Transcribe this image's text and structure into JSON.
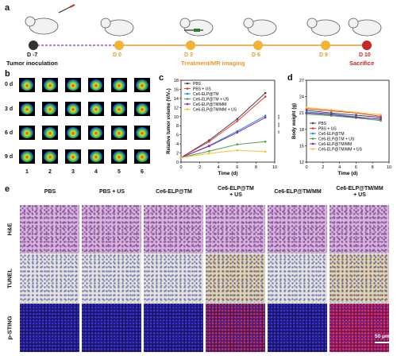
{
  "panels": {
    "a": "a",
    "b": "b",
    "c": "c",
    "d": "d",
    "e": "e"
  },
  "timeline": {
    "days": [
      "D -7",
      "D 0",
      "D 3",
      "D 6",
      "D 9",
      "D 10"
    ],
    "captions": {
      "tumor": "Tumor inoculation",
      "imaging": "Treatment/MR imaging",
      "sacrifice": "Sacrifice"
    },
    "colors": {
      "line": "#e89a2a",
      "dashed": "#7b3fa0",
      "start": "#333333",
      "end": "#c62828"
    }
  },
  "mri": {
    "rows": [
      "0 d",
      "3 d",
      "6 d",
      "9 d"
    ],
    "cols": [
      "1",
      "2",
      "3",
      "4",
      "5",
      "6"
    ]
  },
  "chart_data": [
    {
      "type": "line",
      "panel": "c",
      "xlabel": "Time (d)",
      "ylabel": "Relative tumor volume (V/V₀)",
      "x": [
        0,
        3,
        6,
        9
      ],
      "xticks": [
        "0",
        "2",
        "4",
        "6",
        "8",
        "10"
      ],
      "yticks": [
        "0",
        "2",
        "4",
        "6",
        "8",
        "10",
        "12",
        "14",
        "16",
        "18"
      ],
      "xlim": [
        0,
        10
      ],
      "ylim": [
        0,
        18
      ],
      "series": [
        {
          "name": "PBS",
          "color": "#444444",
          "values": [
            1,
            4.8,
            9.5,
            15.2
          ]
        },
        {
          "name": "PBS + US",
          "color": "#e53935",
          "values": [
            1,
            4.5,
            9.0,
            14.4
          ]
        },
        {
          "name": "Ce6-ELP@TM",
          "color": "#1e88e5",
          "values": [
            1,
            3.6,
            6.8,
            10.2
          ]
        },
        {
          "name": "Ce6-ELP@TM + US",
          "color": "#43a047",
          "values": [
            1,
            2.4,
            3.9,
            4.5
          ]
        },
        {
          "name": "Ce6-ELP@TM/MM",
          "color": "#8e24aa",
          "values": [
            1,
            3.5,
            6.5,
            9.8
          ]
        },
        {
          "name": "Ce6-ELP@TM/MM + US",
          "color": "#fbc02d",
          "values": [
            1,
            1.9,
            2.6,
            2.3
          ]
        }
      ],
      "annotations": [
        "***",
        "***",
        "**"
      ]
    },
    {
      "type": "line",
      "panel": "d",
      "xlabel": "Time (d)",
      "ylabel": "Body weight (g)",
      "x": [
        0,
        3,
        6,
        9
      ],
      "xticks": [
        "0",
        "2",
        "4",
        "6",
        "8",
        "10"
      ],
      "yticks": [
        "12",
        "15",
        "18",
        "21",
        "24",
        "27"
      ],
      "xlim": [
        0,
        10
      ],
      "ylim": [
        12,
        27
      ],
      "series": [
        {
          "name": "PBS",
          "color": "#444444",
          "values": [
            21.5,
            21.0,
            20.6,
            20.2
          ]
        },
        {
          "name": "PBS + US",
          "color": "#e53935",
          "values": [
            21.8,
            21.4,
            21.0,
            20.4
          ]
        },
        {
          "name": "Ce6-ELP@TM",
          "color": "#1e88e5",
          "values": [
            21.2,
            20.8,
            20.3,
            19.8
          ]
        },
        {
          "name": "Ce6-ELP@TM + US",
          "color": "#43a047",
          "values": [
            20.8,
            20.5,
            20.1,
            19.6
          ]
        },
        {
          "name": "Ce6-ELP@TM/MM",
          "color": "#8e24aa",
          "values": [
            21.0,
            20.7,
            20.2,
            19.9
          ]
        },
        {
          "name": "Ce6-ELP@TM/MM + US",
          "color": "#fbc02d",
          "values": [
            22.0,
            21.6,
            21.1,
            20.7
          ]
        }
      ]
    }
  ],
  "histology": {
    "cols": [
      "PBS",
      "PBS + US",
      "Ce6-ELP@TM",
      "Ce6-ELP@TM\n+ US",
      "Ce6-ELP@TM/MM",
      "Ce6-ELP@TM/MM\n+ US"
    ],
    "rows": [
      "H&E",
      "TUNEL",
      "p-STING"
    ],
    "scale": "50 μm"
  }
}
